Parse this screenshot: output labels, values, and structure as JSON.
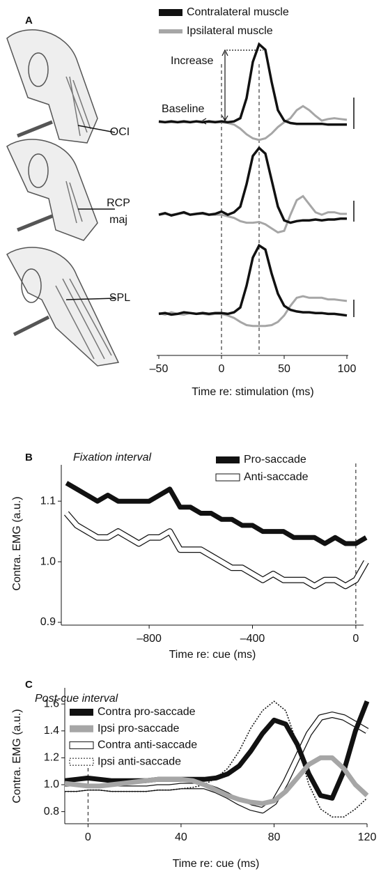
{
  "chart_data": [
    {
      "type": "stacked-traces",
      "label": "A",
      "series": [
        {
          "name": "Contralateral muscle",
          "color": "#111111"
        },
        {
          "name": "Ipsilateral muscle",
          "color": "#a6a6a6"
        }
      ],
      "x": [
        -50,
        -45,
        -40,
        -35,
        -30,
        -25,
        -20,
        -15,
        -10,
        -5,
        0,
        5,
        10,
        15,
        20,
        25,
        30,
        35,
        40,
        45,
        50,
        55,
        60,
        65,
        70,
        75,
        80,
        85,
        90,
        95,
        100
      ],
      "xlim": [
        -50,
        100
      ],
      "xticks": [
        {
          "value": -50,
          "label": "–50"
        },
        0,
        50,
        100
      ],
      "x_label": "Time re: stimulation (ms)",
      "vlines": [
        0,
        30
      ],
      "annotations": [
        "Increase",
        "Baseline"
      ],
      "subplots": [
        {
          "muscle": "OCI",
          "ylim": [
            -0.3,
            1
          ],
          "values": [
            [
              0.01,
              0,
              0.01,
              0,
              0.01,
              0,
              0.01,
              0,
              0.01,
              0,
              0.01,
              0,
              0.01,
              0.05,
              0.3,
              0.75,
              0.97,
              0.9,
              0.5,
              0.15,
              0.02,
              -0.01,
              -0.02,
              -0.02,
              -0.02,
              -0.02,
              -0.02,
              -0.03,
              -0.03,
              -0.03,
              -0.03
            ],
            [
              0,
              0,
              0,
              0,
              0,
              0,
              0.01,
              0.01,
              0,
              0,
              0,
              -0.01,
              -0.03,
              -0.08,
              -0.15,
              -0.2,
              -0.22,
              -0.2,
              -0.14,
              -0.06,
              0,
              0.05,
              0.15,
              0.2,
              0.15,
              0.08,
              0.02,
              0.04,
              0.05,
              0.04,
              0.03
            ]
          ]
        },
        {
          "muscle": "RCP maj",
          "ylim": [
            -0.3,
            1
          ],
          "values": [
            [
              0.02,
              0.04,
              0.01,
              0.03,
              0.05,
              0.02,
              0.03,
              0.04,
              0.02,
              0.03,
              0.06,
              0.02,
              0.05,
              0.12,
              0.4,
              0.75,
              0.85,
              0.78,
              0.45,
              0.12,
              -0.05,
              -0.08,
              -0.06,
              -0.05,
              -0.05,
              -0.04,
              -0.05,
              -0.04,
              -0.04,
              -0.03,
              -0.03
            ],
            [
              0.02,
              0.03,
              0.02,
              0.03,
              0.04,
              0.02,
              0.03,
              0.03,
              0.02,
              0.02,
              0.02,
              0,
              -0.02,
              -0.06,
              -0.08,
              -0.08,
              -0.07,
              -0.1,
              -0.15,
              -0.2,
              -0.18,
              0.02,
              0.2,
              0.25,
              0.15,
              0.05,
              0.02,
              0.05,
              0.05,
              0.03,
              0.03
            ]
          ]
        },
        {
          "muscle": "SPL",
          "ylim": [
            -0.3,
            1
          ],
          "values": [
            [
              0,
              0.01,
              -0.01,
              0,
              0.02,
              0.01,
              0,
              0.01,
              0,
              0.01,
              0.01,
              0,
              0.02,
              0.08,
              0.35,
              0.7,
              0.85,
              0.8,
              0.5,
              0.25,
              0.1,
              0.05,
              0.03,
              0.02,
              0.02,
              0.01,
              0.01,
              0,
              0,
              -0.01,
              -0.02
            ],
            [
              0.01,
              -0.01,
              0.02,
              0,
              -0.01,
              0.01,
              0,
              0,
              -0.01,
              0,
              0,
              -0.02,
              -0.05,
              -0.1,
              -0.14,
              -0.15,
              -0.15,
              -0.15,
              -0.14,
              -0.1,
              -0.02,
              0.1,
              0.2,
              0.22,
              0.2,
              0.2,
              0.2,
              0.18,
              0.18,
              0.17,
              0.16
            ]
          ]
        }
      ]
    },
    {
      "type": "line",
      "label": "B",
      "title": "Fixation interval",
      "x": [
        -1120,
        -1080,
        -1040,
        -1000,
        -960,
        -920,
        -880,
        -840,
        -800,
        -760,
        -720,
        -680,
        -640,
        -600,
        -560,
        -520,
        -480,
        -440,
        -400,
        -360,
        -320,
        -280,
        -240,
        -200,
        -160,
        -120,
        -80,
        -40,
        0,
        40
      ],
      "series": [
        {
          "name": "Pro-saccade",
          "color": "#111111",
          "style": "thick",
          "values": [
            1.13,
            1.12,
            1.11,
            1.1,
            1.11,
            1.1,
            1.1,
            1.1,
            1.1,
            1.11,
            1.12,
            1.09,
            1.09,
            1.08,
            1.08,
            1.07,
            1.07,
            1.06,
            1.06,
            1.05,
            1.05,
            1.05,
            1.04,
            1.04,
            1.04,
            1.03,
            1.04,
            1.03,
            1.03,
            1.04
          ]
        },
        {
          "name": "Anti-saccade",
          "color": "#111111",
          "style": "outline",
          "values": [
            1.08,
            1.06,
            1.05,
            1.04,
            1.04,
            1.05,
            1.04,
            1.03,
            1.04,
            1.04,
            1.05,
            1.02,
            1.02,
            1.02,
            1.01,
            1.0,
            0.99,
            0.99,
            0.98,
            0.97,
            0.98,
            0.97,
            0.97,
            0.97,
            0.96,
            0.97,
            0.97,
            0.96,
            0.97,
            1.0
          ]
        }
      ],
      "xlim": [
        -1140,
        30
      ],
      "ylim": [
        0.9,
        1.16
      ],
      "xticks": [
        {
          "value": -800,
          "label": "–800"
        },
        {
          "value": -400,
          "label": "–400"
        },
        0
      ],
      "yticks": [
        0.9,
        {
          "value": 1,
          "label": "1.0"
        },
        1.1
      ],
      "x_label": "Time re: cue (ms)",
      "y_label": "Contra. EMG (a.u.)",
      "vlines": [
        0
      ]
    },
    {
      "type": "line",
      "label": "C",
      "title": "Post-cue interval",
      "x": [
        -10,
        -5,
        0,
        5,
        10,
        15,
        20,
        25,
        30,
        35,
        40,
        45,
        50,
        55,
        60,
        65,
        70,
        75,
        80,
        85,
        90,
        95,
        100,
        105,
        110,
        115,
        120
      ],
      "series": [
        {
          "name": "Contra pro-saccade",
          "color": "#111111",
          "style": "thick",
          "values": [
            1.03,
            1.04,
            1.05,
            1.04,
            1.03,
            1.03,
            1.03,
            1.03,
            1.04,
            1.04,
            1.04,
            1.04,
            1.04,
            1.05,
            1.08,
            1.14,
            1.25,
            1.38,
            1.48,
            1.45,
            1.3,
            1.08,
            0.92,
            0.9,
            1.1,
            1.4,
            1.62
          ]
        },
        {
          "name": "Ipsi pro-saccade",
          "color": "#a6a6a6",
          "style": "thick",
          "values": [
            1.01,
            1.0,
            0.99,
            0.99,
            1.0,
            1.01,
            1.02,
            1.03,
            1.04,
            1.04,
            1.04,
            1.03,
            1.0,
            0.96,
            0.92,
            0.89,
            0.87,
            0.86,
            0.88,
            0.95,
            1.05,
            1.15,
            1.2,
            1.2,
            1.12,
            1.0,
            0.92
          ]
        },
        {
          "name": "Contra anti-saccade",
          "color": "#111111",
          "style": "outline",
          "values": [
            0.97,
            0.97,
            0.98,
            0.98,
            0.97,
            0.97,
            0.97,
            0.97,
            0.98,
            0.98,
            0.99,
            0.99,
            0.99,
            0.96,
            0.92,
            0.87,
            0.83,
            0.81,
            0.87,
            1.02,
            1.2,
            1.38,
            1.5,
            1.52,
            1.5,
            1.45,
            1.4
          ]
        },
        {
          "name": "Ipsi anti-saccade",
          "color": "#111111",
          "style": "dotted",
          "values": [
            0.95,
            0.95,
            0.96,
            0.96,
            0.95,
            0.95,
            0.95,
            0.95,
            0.96,
            0.96,
            0.97,
            0.98,
            1.0,
            1.05,
            1.12,
            1.25,
            1.42,
            1.55,
            1.62,
            1.55,
            1.3,
            1.0,
            0.82,
            0.76,
            0.76,
            0.82,
            0.9
          ]
        }
      ],
      "xlim": [
        -10,
        120
      ],
      "ylim": [
        0.71,
        1.72
      ],
      "xticks": [
        0,
        40,
        80,
        120
      ],
      "yticks": [
        0.8,
        {
          "value": 1,
          "label": "1.0"
        },
        1.2,
        1.4,
        1.6
      ],
      "x_label": "Time re: cue (ms)",
      "y_label": "Contra. EMG (a.u.)",
      "vlines": [
        0
      ]
    }
  ]
}
